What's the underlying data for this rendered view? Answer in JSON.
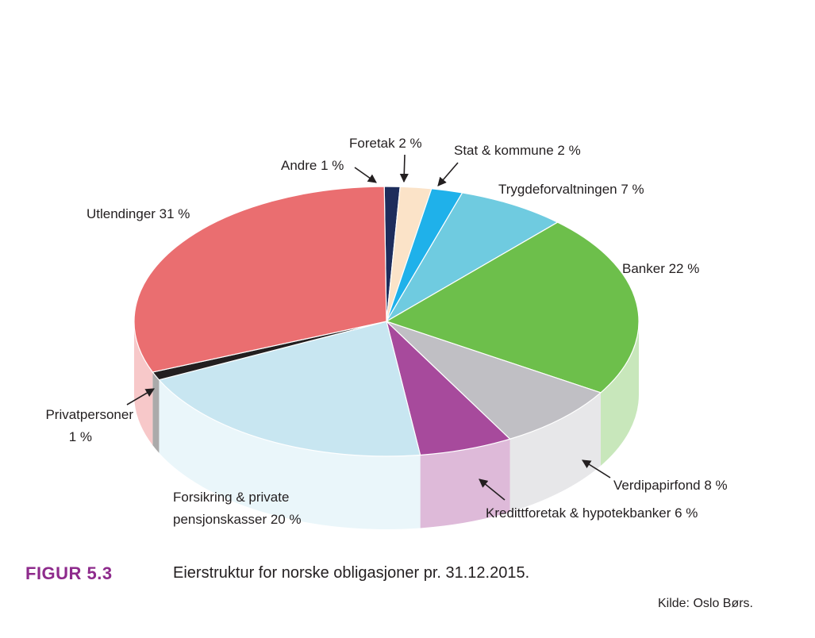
{
  "figure": {
    "number": "FIGUR 5.3",
    "title": "Eierstruktur for norske obligasjoner pr. 31.12.2015.",
    "source": "Kilde: Oslo Børs."
  },
  "chart_data": {
    "type": "pie",
    "style": "3d",
    "title": "",
    "unit": "%",
    "slices": [
      {
        "label": "Andre 1 %",
        "value": 1,
        "color": "#1d2d5c"
      },
      {
        "label": "Foretak 2 %",
        "value": 2,
        "color": "#fbe3c8"
      },
      {
        "label": "Stat & kommune 2 %",
        "value": 2,
        "color": "#1fb1ea"
      },
      {
        "label": "Trygdeforvaltningen 7 %",
        "value": 7,
        "color": "#6fcbe0"
      },
      {
        "label": "Banker 22 %",
        "value": 22,
        "color": "#6dbf4b"
      },
      {
        "label": "Verdipapirfond 8 %",
        "value": 8,
        "color": "#c0bfc4"
      },
      {
        "label": "Kredittforetak & hypotekbanker 6 %",
        "value": 6,
        "color": "#a74a9c"
      },
      {
        "label": "Forsikring & private|pensjonskasser 20 %",
        "value": 20,
        "color": "#c8e6f1"
      },
      {
        "label": "Privatpersoner|1 %",
        "value": 1,
        "color": "#231f20"
      },
      {
        "label": "Utlendinger 31 %",
        "value": 31,
        "color": "#ea6e70"
      }
    ]
  }
}
